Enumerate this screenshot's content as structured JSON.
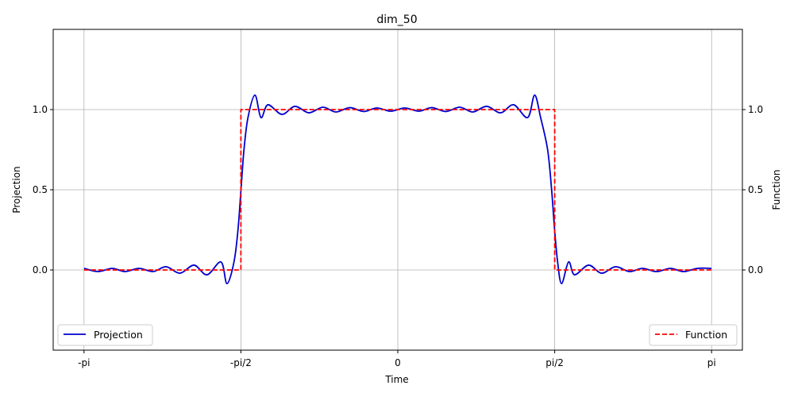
{
  "chart_data": {
    "type": "line",
    "title": "dim_50",
    "xlabel": "Time",
    "ylabel_left": "Projection",
    "ylabel_right": "Function",
    "xlim": [
      -3.45,
      3.45
    ],
    "ylim": [
      -0.5,
      1.5
    ],
    "x_ticks": [
      {
        "value": -3.14159,
        "label": "-pi"
      },
      {
        "value": -1.5708,
        "label": "-pi/2"
      },
      {
        "value": 0,
        "label": "0"
      },
      {
        "value": 1.5708,
        "label": "pi/2"
      },
      {
        "value": 3.14159,
        "label": "pi"
      }
    ],
    "y_ticks": [
      {
        "value": 0.0,
        "label": "0.0"
      },
      {
        "value": 0.5,
        "label": "0.5"
      },
      {
        "value": 1.0,
        "label": "1.0"
      }
    ],
    "grid": true,
    "series": [
      {
        "name": "Projection",
        "color": "#0000cc",
        "style": "solid",
        "legend": "lower-left",
        "x": [
          -3.14,
          -3.0,
          -2.86,
          -2.73,
          -2.59,
          -2.45,
          -2.32,
          -2.18,
          -2.04,
          -1.91,
          -1.77,
          -1.71,
          -1.64,
          -1.6,
          -1.57,
          -1.54,
          -1.5,
          -1.43,
          -1.37,
          -1.3,
          -1.16,
          -1.03,
          -0.89,
          -0.75,
          -0.62,
          -0.48,
          -0.34,
          -0.21,
          -0.07,
          0.07,
          0.21,
          0.34,
          0.48,
          0.62,
          0.75,
          0.89,
          1.03,
          1.16,
          1.3,
          1.37,
          1.43,
          1.5,
          1.54,
          1.57,
          1.6,
          1.64,
          1.71,
          1.77,
          1.91,
          2.04,
          2.18,
          2.32,
          2.45,
          2.59,
          2.73,
          2.86,
          3.0,
          3.14
        ],
        "y": [
          0.01,
          -0.01,
          0.01,
          -0.01,
          0.01,
          -0.01,
          0.02,
          -0.02,
          0.03,
          -0.03,
          0.05,
          -0.085,
          0.05,
          0.25,
          0.5,
          0.75,
          0.95,
          1.09,
          0.95,
          1.03,
          0.97,
          1.02,
          0.98,
          1.015,
          0.985,
          1.012,
          0.988,
          1.01,
          0.99,
          1.01,
          0.99,
          1.012,
          0.988,
          1.015,
          0.985,
          1.02,
          0.98,
          1.03,
          0.95,
          1.09,
          0.95,
          0.75,
          0.5,
          0.25,
          0.05,
          -0.085,
          0.05,
          -0.03,
          0.03,
          -0.02,
          0.02,
          -0.01,
          0.01,
          -0.01,
          0.01,
          -0.01,
          0.01,
          0.01
        ]
      },
      {
        "name": "Function",
        "color": "#ff0000",
        "style": "dashed",
        "legend": "lower-right",
        "x": [
          -3.14159,
          -1.5708,
          -1.5708,
          1.5708,
          1.5708,
          3.14159
        ],
        "y": [
          0,
          0,
          1,
          1,
          0,
          0
        ]
      }
    ]
  }
}
